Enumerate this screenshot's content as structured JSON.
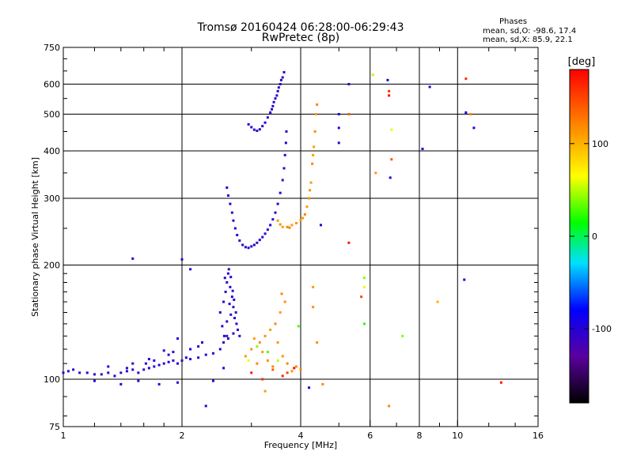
{
  "header": {
    "title_line1": "Tromsø 20160424 06:28:00-06:29:43",
    "title_line2": "RwPretec (8p)",
    "stats_title": "Phases",
    "stats_o": "mean, sd,O:  -98.6, 17.4",
    "stats_x": "mean, sd,X:   85.9, 22.1"
  },
  "colorbar": {
    "unit_label": "[deg]",
    "min": -180,
    "max": 180,
    "tick_values": [
      100,
      0,
      -100
    ],
    "tick_labels": [
      "100",
      "0",
      "-100"
    ]
  },
  "chart_data": {
    "type": "scatter",
    "title": "Tromsø 20160424 06:28:00-06:29:43",
    "subtitle": "RwPretec (8p)",
    "xlabel": "Frequency [MHz]",
    "ylabel": "Stationary phase Virtual Height [km]",
    "xscale": "log",
    "yscale": "log",
    "xlim": [
      1,
      16
    ],
    "ylim": [
      75,
      750
    ],
    "xticks": [
      1,
      2,
      4,
      6,
      8,
      10,
      16
    ],
    "xtick_labels": [
      "1",
      "2",
      "4",
      "6",
      "8",
      "10",
      "16"
    ],
    "x_gridlines": [
      2,
      4,
      6,
      8,
      10
    ],
    "yticks": [
      75,
      100,
      200,
      300,
      400,
      500,
      600,
      750
    ],
    "ytick_labels": [
      "75",
      "100",
      "200",
      "300",
      "400",
      "500",
      "600",
      "750"
    ],
    "y_gridlines": [
      100,
      200,
      300,
      400,
      500,
      600
    ],
    "color_encoding": "phase_deg",
    "series": [
      {
        "points": [
          [
            1.0,
            104,
            -100
          ],
          [
            1.03,
            105,
            -105
          ],
          [
            1.06,
            106,
            -100
          ],
          [
            1.1,
            104,
            -110
          ],
          [
            1.15,
            104,
            -100
          ],
          [
            1.2,
            103,
            -105
          ],
          [
            1.25,
            103,
            -100
          ],
          [
            1.3,
            104,
            -108
          ],
          [
            1.35,
            102,
            -100
          ],
          [
            1.4,
            104,
            -110
          ],
          [
            1.45,
            105,
            -100
          ],
          [
            1.5,
            106,
            -105
          ],
          [
            1.55,
            104,
            -100
          ],
          [
            1.6,
            106,
            -110
          ],
          [
            1.65,
            107,
            -100
          ],
          [
            1.7,
            108,
            -105
          ],
          [
            1.75,
            109,
            -100
          ],
          [
            1.8,
            110,
            -108
          ],
          [
            1.85,
            111,
            -100
          ],
          [
            1.9,
            112,
            -105
          ],
          [
            1.95,
            110,
            -100
          ],
          [
            2.0,
            112,
            -108
          ],
          [
            2.05,
            114,
            -100
          ],
          [
            2.1,
            113,
            -105
          ],
          [
            2.2,
            114,
            -100
          ],
          [
            2.3,
            116,
            -110
          ],
          [
            2.4,
            117,
            -100
          ],
          [
            2.5,
            120,
            -105
          ],
          [
            2.55,
            125,
            -100
          ],
          [
            2.6,
            130,
            -108
          ],
          [
            1.3,
            108,
            -100
          ],
          [
            1.5,
            110,
            -105
          ],
          [
            1.7,
            112,
            -100
          ],
          [
            1.9,
            118,
            -110
          ],
          [
            2.2,
            122,
            -100
          ],
          [
            1.45,
            107,
            -105
          ],
          [
            1.65,
            113,
            -100
          ],
          [
            1.85,
            116,
            -108
          ],
          [
            1.95,
            128,
            -100
          ],
          [
            2.25,
            125,
            -105
          ],
          [
            1.2,
            99,
            -100
          ],
          [
            1.4,
            97,
            -100
          ],
          [
            1.55,
            99,
            -105
          ],
          [
            1.75,
            97,
            -100
          ],
          [
            1.95,
            98,
            -108
          ],
          [
            2.4,
            99,
            -100
          ],
          [
            2.55,
            107,
            -105
          ],
          [
            1.62,
            110,
            -100
          ],
          [
            1.8,
            119,
            -110
          ],
          [
            2.1,
            120,
            -100
          ]
        ]
      },
      {
        "points": [
          [
            2.5,
            150,
            -100
          ],
          [
            2.55,
            160,
            -105
          ],
          [
            2.58,
            170,
            -100
          ],
          [
            2.6,
            180,
            -108
          ],
          [
            2.62,
            190,
            -100
          ],
          [
            2.65,
            175,
            -105
          ],
          [
            2.68,
            165,
            -100
          ],
          [
            2.7,
            155,
            -110
          ],
          [
            2.72,
            145,
            -100
          ],
          [
            2.75,
            140,
            -105
          ],
          [
            2.57,
            185,
            -100
          ],
          [
            2.63,
            195,
            -108
          ],
          [
            2.66,
            186,
            -100
          ],
          [
            2.69,
            171,
            -105
          ],
          [
            2.71,
            162,
            -100
          ],
          [
            2.74,
            150,
            -110
          ],
          [
            2.53,
            138,
            -100
          ],
          [
            2.6,
            142,
            -105
          ],
          [
            2.64,
            158,
            -100
          ],
          [
            2.77,
            135,
            -108
          ],
          [
            2.56,
            130,
            -100
          ],
          [
            2.62,
            128,
            -105
          ],
          [
            2.7,
            132,
            -100
          ],
          [
            2.8,
            130,
            -110
          ],
          [
            2.66,
            148,
            -100
          ]
        ]
      },
      {
        "points": [
          [
            2.6,
            320,
            -100
          ],
          [
            2.62,
            305,
            -105
          ],
          [
            2.65,
            290,
            -100
          ],
          [
            2.68,
            275,
            -108
          ],
          [
            2.7,
            262,
            -100
          ],
          [
            2.73,
            250,
            -105
          ],
          [
            2.76,
            240,
            -100
          ],
          [
            2.8,
            232,
            -110
          ],
          [
            2.85,
            226,
            -100
          ],
          [
            2.9,
            223,
            -105
          ],
          [
            2.95,
            222,
            -100
          ],
          [
            3.0,
            224,
            -108
          ],
          [
            3.05,
            226,
            -100
          ],
          [
            3.1,
            229,
            -105
          ],
          [
            3.15,
            233,
            -100
          ],
          [
            3.2,
            237,
            -110
          ],
          [
            3.25,
            242,
            -100
          ],
          [
            3.3,
            248,
            -105
          ],
          [
            3.35,
            255,
            -100
          ],
          [
            3.4,
            264,
            -108
          ],
          [
            3.45,
            275,
            -100
          ],
          [
            3.5,
            290,
            -105
          ],
          [
            3.55,
            310,
            -100
          ],
          [
            3.6,
            335,
            -110
          ],
          [
            3.63,
            360,
            -100
          ],
          [
            3.65,
            390,
            -105
          ],
          [
            3.67,
            420,
            -100
          ],
          [
            3.68,
            450,
            -108
          ]
        ]
      },
      {
        "points": [
          [
            2.95,
            470,
            -100
          ],
          [
            3.0,
            462,
            -105
          ],
          [
            3.05,
            455,
            -100
          ],
          [
            3.1,
            452,
            -108
          ],
          [
            3.15,
            456,
            -100
          ],
          [
            3.2,
            465,
            -105
          ],
          [
            3.25,
            475,
            -100
          ],
          [
            3.3,
            490,
            -110
          ],
          [
            3.35,
            505,
            -100
          ],
          [
            3.4,
            525,
            -105
          ],
          [
            3.45,
            550,
            -100
          ],
          [
            3.5,
            575,
            -108
          ],
          [
            3.55,
            600,
            -100
          ],
          [
            3.6,
            625,
            -105
          ],
          [
            3.63,
            645,
            -100
          ],
          [
            3.48,
            560,
            -110
          ],
          [
            3.52,
            588,
            -100
          ],
          [
            3.57,
            615,
            -105
          ],
          [
            3.38,
            515,
            -100
          ],
          [
            3.42,
            538,
            -108
          ]
        ]
      },
      {
        "points": [
          [
            3.5,
            262,
            110
          ],
          [
            3.55,
            256,
            115
          ],
          [
            3.6,
            252,
            110
          ],
          [
            3.7,
            252,
            120
          ],
          [
            3.8,
            255,
            110
          ],
          [
            3.9,
            258,
            115
          ],
          [
            4.0,
            263,
            110
          ],
          [
            4.1,
            272,
            120
          ],
          [
            4.15,
            285,
            110
          ],
          [
            4.2,
            300,
            115
          ],
          [
            4.25,
            330,
            110
          ],
          [
            4.28,
            370,
            120
          ],
          [
            4.32,
            410,
            110
          ],
          [
            4.35,
            450,
            115
          ],
          [
            4.38,
            500,
            110
          ],
          [
            4.4,
            530,
            120
          ],
          [
            4.3,
            390,
            110
          ],
          [
            4.22,
            315,
            115
          ],
          [
            4.05,
            266,
            110
          ],
          [
            3.75,
            251,
            120
          ]
        ]
      },
      {
        "points": [
          [
            2.9,
            115,
            110
          ],
          [
            3.0,
            120,
            115
          ],
          [
            3.1,
            110,
            120
          ],
          [
            3.2,
            118,
            110
          ],
          [
            3.3,
            112,
            115
          ],
          [
            3.4,
            108,
            120
          ],
          [
            3.5,
            125,
            110
          ],
          [
            3.6,
            115,
            115
          ],
          [
            3.7,
            110,
            120
          ],
          [
            3.8,
            105,
            110
          ],
          [
            3.9,
            108,
            115
          ],
          [
            4.0,
            106,
            120
          ],
          [
            3.05,
            128,
            110
          ],
          [
            3.25,
            130,
            115
          ],
          [
            3.45,
            140,
            120
          ],
          [
            3.55,
            150,
            110
          ],
          [
            3.65,
            160,
            115
          ],
          [
            3.58,
            168,
            120
          ],
          [
            3.35,
            135,
            110
          ],
          [
            3.15,
            125,
            115
          ],
          [
            2.95,
            112,
            60
          ],
          [
            3.1,
            122,
            40
          ],
          [
            3.3,
            118,
            30
          ],
          [
            3.5,
            112,
            50
          ],
          [
            3.7,
            104,
            150
          ],
          [
            3.0,
            104,
            170
          ],
          [
            3.2,
            100,
            160
          ],
          [
            3.4,
            106,
            140
          ],
          [
            3.6,
            102,
            165
          ],
          [
            3.85,
            107,
            175
          ]
        ]
      },
      {
        "points": [
          [
            1.5,
            208,
            -100
          ],
          [
            2.0,
            207,
            -105
          ],
          [
            2.1,
            195,
            -100
          ],
          [
            2.3,
            85,
            -110
          ],
          [
            3.25,
            93,
            110
          ],
          [
            3.95,
            138,
            30
          ],
          [
            4.2,
            95,
            -100
          ],
          [
            4.4,
            125,
            115
          ],
          [
            4.5,
            255,
            -100
          ],
          [
            4.55,
            97,
            120
          ],
          [
            4.3,
            175,
            110
          ],
          [
            4.3,
            155,
            115
          ],
          [
            5.0,
            500,
            -100
          ],
          [
            5.0,
            460,
            -105
          ],
          [
            5.0,
            420,
            -110
          ],
          [
            5.3,
            600,
            -100
          ],
          [
            5.3,
            500,
            140
          ],
          [
            5.8,
            175,
            60
          ],
          [
            5.7,
            165,
            150
          ],
          [
            5.8,
            185,
            40
          ],
          [
            5.8,
            140,
            20
          ],
          [
            5.3,
            229,
            170
          ],
          [
            6.1,
            635,
            50
          ],
          [
            6.2,
            350,
            110
          ],
          [
            6.65,
            615,
            -100
          ],
          [
            6.7,
            560,
            175
          ],
          [
            6.7,
            575,
            160
          ],
          [
            6.8,
            455,
            60
          ],
          [
            6.8,
            380,
            140
          ],
          [
            6.75,
            340,
            -100
          ],
          [
            7.25,
            130,
            40
          ],
          [
            6.7,
            85,
            120
          ],
          [
            8.15,
            405,
            -100
          ],
          [
            8.5,
            590,
            -100
          ],
          [
            8.9,
            160,
            100
          ],
          [
            10.5,
            620,
            160
          ],
          [
            10.5,
            505,
            -100
          ],
          [
            11.0,
            460,
            -100
          ],
          [
            10.8,
            500,
            120
          ],
          [
            10.4,
            183,
            -100
          ],
          [
            12.9,
            98,
            170
          ]
        ]
      }
    ]
  }
}
